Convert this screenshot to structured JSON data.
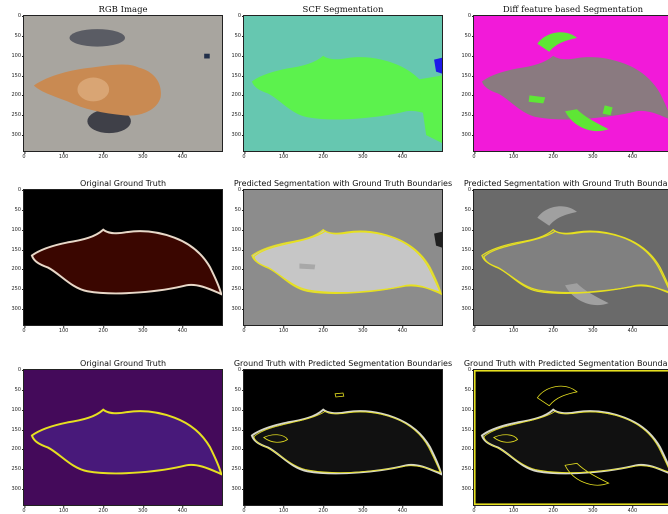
{
  "panels": [
    {
      "id": "rgb",
      "title": "RGB Image",
      "serif": true,
      "kind": "photo",
      "bg": "#a8a59f"
    },
    {
      "id": "scf",
      "title": "SCF Segmentation",
      "serif": true,
      "kind": "seg",
      "bg": "#66c7b0",
      "region": "#5cf24d",
      "accent": "#1d1ae8"
    },
    {
      "id": "diff",
      "title": "Diff feature based Segmentation",
      "serif": true,
      "kind": "seg2",
      "bg": "#f21ad9",
      "region": "#8a7a80",
      "accent": "#5ee635"
    },
    {
      "id": "gt1",
      "title": "Original Ground Truth",
      "serif": false,
      "kind": "mask",
      "bg": "#000000",
      "region": "#3a0600",
      "outline": "#e8d8c8"
    },
    {
      "id": "pred1",
      "title": "Predicted Segmentation with Ground Truth Boundaries",
      "serif": false,
      "kind": "predgt",
      "bg": "#8c8c8c",
      "region": "#c6c6c6",
      "outline": "#e6e020"
    },
    {
      "id": "pred2",
      "title": "Predicted Segmentation with Ground Truth Boundaries",
      "serif": false,
      "kind": "predgt2",
      "bg": "#6a6a6a",
      "region": "#808080",
      "outline": "#e6e020"
    },
    {
      "id": "gt2",
      "title": "Original Ground Truth",
      "serif": false,
      "kind": "mask2",
      "bg": "#440a5a",
      "region": "#48197a",
      "outline": "#e6e020"
    },
    {
      "id": "gtp1",
      "title": "Ground Truth with Predicted Segmentation Boundaries",
      "serif": false,
      "kind": "gtpred",
      "bg": "#000000",
      "region": "#111111",
      "outline": "#e6e020"
    },
    {
      "id": "gtp2",
      "title": "Ground Truth with Predicted Segmentation Boundaries",
      "serif": false,
      "kind": "gtpred2",
      "bg": "#000000",
      "region": "#111111",
      "outline": "#e6e020"
    }
  ],
  "yticks": [
    "0",
    "50",
    "100",
    "150",
    "200",
    "250",
    "300"
  ],
  "xticks": [
    "0",
    "100",
    "200",
    "300",
    "400"
  ],
  "image": {
    "width": 500,
    "height": 340
  }
}
